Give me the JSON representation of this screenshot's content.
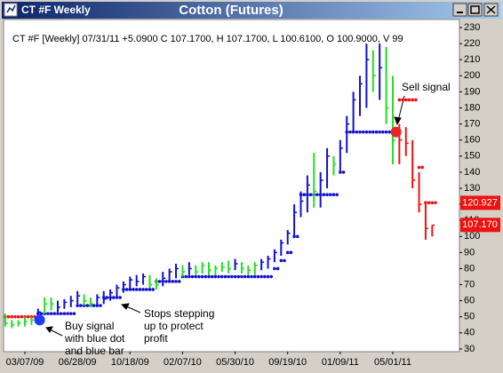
{
  "window": {
    "title_left": "CT #F Weekly",
    "title_center": "Cotton (Futures)"
  },
  "chart_data": {
    "type": "ohlc",
    "info": "CT #F [Weekly] 07/31/11  +5.0900  C 107.1700,  H 107.1700,  L 100.6100,  O 100.9000,  V 99",
    "xlim": [
      -6.5,
      132.3
    ],
    "ylim": [
      28.3,
      235
    ],
    "xticks": [
      {
        "value": 0,
        "label": "03/07/09"
      },
      {
        "value": 16,
        "label": "06/28/09"
      },
      {
        "value": 32,
        "label": "10/18/09"
      },
      {
        "value": 48,
        "label": "02/07/10"
      },
      {
        "value": 64,
        "label": "05/30/10"
      },
      {
        "value": 80,
        "label": "09/19/10"
      },
      {
        "value": 96,
        "label": "01/09/11"
      },
      {
        "value": 112,
        "label": "05/01/11"
      }
    ],
    "yticks": [
      30,
      40,
      50,
      60,
      70,
      80,
      90,
      100,
      110,
      120,
      130,
      140,
      150,
      160,
      170,
      180,
      190,
      200,
      210,
      220,
      230
    ],
    "bars": {
      "x": [
        -6,
        -4,
        -2,
        0,
        2,
        4,
        6,
        8,
        10,
        12,
        14,
        16,
        18,
        20,
        22,
        24,
        26,
        28,
        30,
        32,
        34,
        36,
        38,
        40,
        42,
        44,
        46,
        48,
        50,
        52,
        54,
        56,
        58,
        60,
        62,
        64,
        66,
        68,
        70,
        72,
        74,
        76,
        78,
        80,
        82,
        84,
        86,
        88,
        90,
        92,
        94,
        96,
        98,
        100,
        102,
        104,
        106,
        108,
        110,
        112,
        114,
        116,
        118,
        120,
        122,
        124
      ],
      "high": [
        52,
        48,
        48,
        50,
        50,
        55,
        62,
        62,
        60,
        61,
        63,
        66,
        64,
        62,
        64,
        66,
        67,
        70,
        72,
        75,
        76,
        77,
        76,
        74,
        78,
        80,
        83,
        82,
        84,
        82,
        84,
        84,
        82,
        84,
        85,
        86,
        84,
        82,
        84,
        86,
        88,
        92,
        98,
        104,
        120,
        128,
        138,
        152,
        140,
        155,
        150,
        160,
        175,
        190,
        200,
        220,
        216,
        220,
        218,
        200,
        170,
        168,
        160,
        140,
        122,
        107
      ],
      "low": [
        44,
        43,
        44,
        44,
        45,
        47,
        52,
        54,
        53,
        55,
        56,
        58,
        57,
        56,
        57,
        58,
        60,
        62,
        65,
        67,
        69,
        70,
        68,
        67,
        69,
        72,
        74,
        75,
        76,
        76,
        77,
        76,
        76,
        78,
        77,
        79,
        77,
        76,
        76,
        79,
        80,
        84,
        88,
        95,
        100,
        112,
        115,
        118,
        118,
        130,
        138,
        140,
        152,
        165,
        175,
        180,
        190,
        185,
        170,
        145,
        145,
        150,
        130,
        115,
        98,
        100
      ],
      "close": [
        46,
        45,
        46,
        47,
        48,
        53,
        58,
        58,
        56,
        59,
        60,
        63,
        60,
        58,
        62,
        61,
        65,
        68,
        70,
        73,
        72,
        75,
        70,
        70,
        74,
        78,
        80,
        78,
        80,
        78,
        82,
        79,
        80,
        81,
        80,
        83,
        80,
        79,
        82,
        84,
        86,
        90,
        96,
        102,
        115,
        122,
        132,
        128,
        135,
        150,
        145,
        155,
        170,
        185,
        195,
        210,
        200,
        205,
        180,
        160,
        160,
        158,
        135,
        120,
        105,
        107
      ],
      "colors": [
        "#22dd22",
        "#22dd22",
        "#22dd22",
        "#22dd22",
        "#22dd22",
        "#1010d0",
        "#22dd22",
        "#22dd22",
        "#1010d0",
        "#1010d0",
        "#1010d0",
        "#1010d0",
        "#22dd22",
        "#22dd22",
        "#1010d0",
        "#1010d0",
        "#1010d0",
        "#1010d0",
        "#1010d0",
        "#1010d0",
        "#1010d0",
        "#1010d0",
        "#22dd22",
        "#22dd22",
        "#1010d0",
        "#1010d0",
        "#1010d0",
        "#22dd22",
        "#1010d0",
        "#22dd22",
        "#22dd22",
        "#22dd22",
        "#22dd22",
        "#22dd22",
        "#22dd22",
        "#1010d0",
        "#22dd22",
        "#22dd22",
        "#22dd22",
        "#1010d0",
        "#1010d0",
        "#1010d0",
        "#1010d0",
        "#1010d0",
        "#1010d0",
        "#1010d0",
        "#1010d0",
        "#22dd22",
        "#1010d0",
        "#1010d0",
        "#22dd22",
        "#1010d0",
        "#1010d0",
        "#1010d0",
        "#1010d0",
        "#1010d0",
        "#22dd22",
        "#1010d0",
        "#22dd22",
        "#22dd22",
        "#ee1111",
        "#ee1111",
        "#ee1111",
        "#ee1111",
        "#ee1111",
        "#ee1111"
      ]
    },
    "stops": {
      "values": [
        50,
        50,
        50,
        50,
        50,
        52,
        52,
        52,
        52,
        52,
        52,
        57,
        57,
        57,
        57,
        62,
        62,
        62,
        67,
        67,
        67,
        67,
        67,
        72,
        72,
        72,
        72,
        75,
        75,
        75,
        75,
        75,
        75,
        75,
        75,
        75,
        75,
        75,
        75,
        75,
        75,
        80,
        85,
        90,
        100,
        126,
        126,
        126,
        126,
        126,
        126,
        140,
        165,
        165,
        165,
        165,
        165,
        165,
        165,
        165,
        185,
        185,
        185,
        143,
        121,
        121
      ],
      "colors": [
        "#ee1111",
        "#ee1111",
        "#ee1111",
        "#ee1111",
        "#ee1111",
        "#1010d0",
        "#1010d0",
        "#1010d0",
        "#1010d0",
        "#1010d0",
        "#1010d0",
        "#1010d0",
        "#1010d0",
        "#1010d0",
        "#1010d0",
        "#1010d0",
        "#1010d0",
        "#1010d0",
        "#1010d0",
        "#1010d0",
        "#1010d0",
        "#1010d0",
        "#1010d0",
        "#1010d0",
        "#1010d0",
        "#1010d0",
        "#1010d0",
        "#1010d0",
        "#1010d0",
        "#1010d0",
        "#1010d0",
        "#1010d0",
        "#1010d0",
        "#1010d0",
        "#1010d0",
        "#1010d0",
        "#1010d0",
        "#1010d0",
        "#1010d0",
        "#1010d0",
        "#1010d0",
        "#1010d0",
        "#1010d0",
        "#1010d0",
        "#1010d0",
        "#1010d0",
        "#1010d0",
        "#1010d0",
        "#1010d0",
        "#1010d0",
        "#1010d0",
        "#1010d0",
        "#1010d0",
        "#1010d0",
        "#1010d0",
        "#1010d0",
        "#1010d0",
        "#1010d0",
        "#1010d0",
        "#1010d0",
        "#ee1111",
        "#ee1111",
        "#ee1111",
        "#ee1111",
        "#ee1111",
        "#ee1111"
      ]
    },
    "signals": [
      {
        "x": 4.5,
        "value": 48,
        "color": "#1e3cff"
      },
      {
        "x": 113,
        "value": 165,
        "color": "#ee2222"
      }
    ],
    "price_labels": [
      {
        "value": 120.927,
        "label": "120.927"
      },
      {
        "value": 107.17,
        "label": "107.170"
      }
    ],
    "annotations": {
      "buy": [
        "Buy signal",
        "with blue dot",
        "and blue bar"
      ],
      "stops": [
        "Stops stepping",
        "up to protect",
        "profit"
      ],
      "sell": [
        "Sell signal"
      ]
    }
  }
}
